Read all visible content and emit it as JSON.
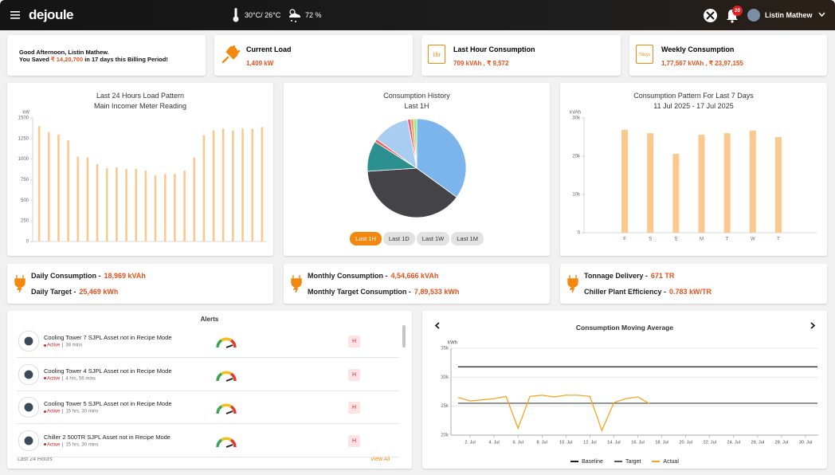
{
  "header": {
    "logo": "dejoule",
    "temperature": "30°C/ 26°C",
    "humidity": "72 %",
    "notifications": "20",
    "user": "Listin Mathew"
  },
  "greeting": {
    "line1": "Good Afternoon, Listin Mathew.",
    "prefix": "You Saved",
    "amount": "₹ 14,20,700",
    "suffix": "in 17 days this Billing Period!"
  },
  "kpis": [
    {
      "title": "Current Load",
      "value": "1,409 kW"
    },
    {
      "title": "Last Hour Consumption",
      "value": "709 kVAh , ₹ 9,572",
      "icon": "1hr"
    },
    {
      "title": "Weekly Consumption",
      "value": "1,77,567 kVAh , ₹ 23,97,155",
      "icon": "7days"
    }
  ],
  "summary": [
    [
      {
        "label": "Daily Consumption -",
        "value": "18,969 kVAh"
      },
      {
        "label": "Daily Target -",
        "value": "25,469 kWh"
      }
    ],
    [
      {
        "label": "Monthly Consumption -",
        "value": "4,54,666 kVAh"
      },
      {
        "label": "Monthly Target Consumption -",
        "value": "7,89,533 kWh"
      }
    ],
    [
      {
        "label": "Tonnage Delivery -",
        "value": "671 TR"
      },
      {
        "label": "Chiller Plant Efficiency -",
        "value": "0.783 kW/TR"
      }
    ]
  ],
  "alerts": {
    "title": "Alerts",
    "footer": "Last 24 Hours",
    "link": "View All",
    "items": [
      {
        "text": "Cooling Tower 7 SJPL Asset not in Recipe Mode",
        "status": "Active",
        "time": "38 mins",
        "priority": "H"
      },
      {
        "text": "Cooling Tower 4 SJPL Asset not in Recipe Mode",
        "status": "Active",
        "time": "4 hrs, 56 mins",
        "priority": "H"
      },
      {
        "text": "Cooling Tower 5 SJPL Asset not in Recipe Mode",
        "status": "Active",
        "time": "15 hrs, 30 mins",
        "priority": "H"
      },
      {
        "text": "Chiller 2 500TR SJPL Asset not in Recipe Mode",
        "status": "Active",
        "time": "15 hrs, 30 mins",
        "priority": "H"
      }
    ]
  },
  "chart_data": [
    {
      "type": "bar",
      "title": "Last 24 Hours Load Pattern",
      "subtitle": "Main Incomer Meter Reading",
      "y_label": "kW",
      "values": [
        1400,
        1330,
        1300,
        1230,
        1030,
        1020,
        940,
        890,
        900,
        880,
        880,
        860,
        800,
        820,
        820,
        860,
        1020,
        1290,
        1350,
        1370,
        1350,
        1370,
        1370,
        1390
      ],
      "color": "#f9c98f",
      "ylim": [
        0,
        1500
      ],
      "yticks": [
        0,
        250,
        500,
        750,
        1000,
        1250,
        1500
      ],
      "grid": false
    },
    {
      "type": "pie",
      "title": "Consumption History",
      "subtitle": "Last 1H",
      "values": [
        35,
        39,
        10,
        1,
        12,
        1,
        1,
        1
      ],
      "colors": [
        "#7cb5ec",
        "#434348",
        "#2b908f",
        "#f45b5b",
        "#a9cdf0",
        "#f15c80",
        "#f7a35c",
        "#90ed7d"
      ],
      "options": [
        "Last 1H",
        "Last 1D",
        "Last 1W",
        "Last 1M"
      ],
      "selected_index": 0
    },
    {
      "type": "bar",
      "title": "Consumption Pattern For Last 7 Days",
      "subtitle": "11 Jul 2025 - 17 Jul 2025",
      "y_label": "kVAh",
      "categories": [
        "F",
        "S",
        "S",
        "M",
        "T",
        "W",
        "T"
      ],
      "values": [
        26900,
        26000,
        20600,
        25600,
        26000,
        26700,
        25000
      ],
      "color": "#f9c98f",
      "ylim": [
        0,
        30000
      ],
      "yticks": [
        0,
        {
          "value": 10000,
          "label": "10k"
        },
        {
          "value": 20000,
          "label": "20k"
        },
        {
          "value": 30000,
          "label": "30k"
        }
      ],
      "grid": false
    },
    {
      "type": "line",
      "title": "Consumption Moving Average",
      "y_label": "kWh",
      "xlim": [
        1,
        31
      ],
      "xticks": [
        {
          "value": 2,
          "label": "2. Jul"
        },
        {
          "value": 4,
          "label": "4. Jul"
        },
        {
          "value": 6,
          "label": "6. Jul"
        },
        {
          "value": 8,
          "label": "8. Jul"
        },
        {
          "value": 10,
          "label": "10. Jul"
        },
        {
          "value": 12,
          "label": "12. Jul"
        },
        {
          "value": 14,
          "label": "14. Jul"
        },
        {
          "value": 16,
          "label": "16. Jul"
        },
        {
          "value": 18,
          "label": "18. Jul"
        },
        {
          "value": 20,
          "label": "20. Jul"
        },
        {
          "value": 22,
          "label": "22. Jul"
        },
        {
          "value": 24,
          "label": "24. Jul"
        },
        {
          "value": 26,
          "label": "26. Jul"
        },
        {
          "value": 28,
          "label": "28. Jul"
        },
        {
          "value": 30,
          "label": "30. Jul"
        }
      ],
      "ylim": [
        20000,
        35000
      ],
      "yticks": [
        {
          "value": 20000,
          "label": "20k"
        },
        {
          "value": 25000,
          "label": "25k"
        },
        {
          "value": 30000,
          "label": "30k"
        },
        {
          "value": 35000,
          "label": "35k"
        }
      ],
      "grid": true,
      "series": [
        {
          "name": "Baseline",
          "color": "#1a1a1a",
          "x": [
            1,
            31
          ],
          "values": [
            31800,
            31800
          ]
        },
        {
          "name": "Target",
          "color": "#555555",
          "x": [
            1,
            31
          ],
          "values": [
            25500,
            25500
          ]
        },
        {
          "name": "Actual",
          "color": "#f5a623",
          "x": [
            1,
            2,
            3,
            4,
            5,
            6,
            7,
            8,
            9,
            10,
            11,
            12,
            13,
            14,
            15,
            16,
            17
          ],
          "values": [
            26500,
            25900,
            26100,
            26300,
            26700,
            21200,
            26700,
            26900,
            26600,
            26900,
            26900,
            26700,
            20800,
            25600,
            26300,
            26600,
            25400
          ]
        }
      ]
    }
  ]
}
